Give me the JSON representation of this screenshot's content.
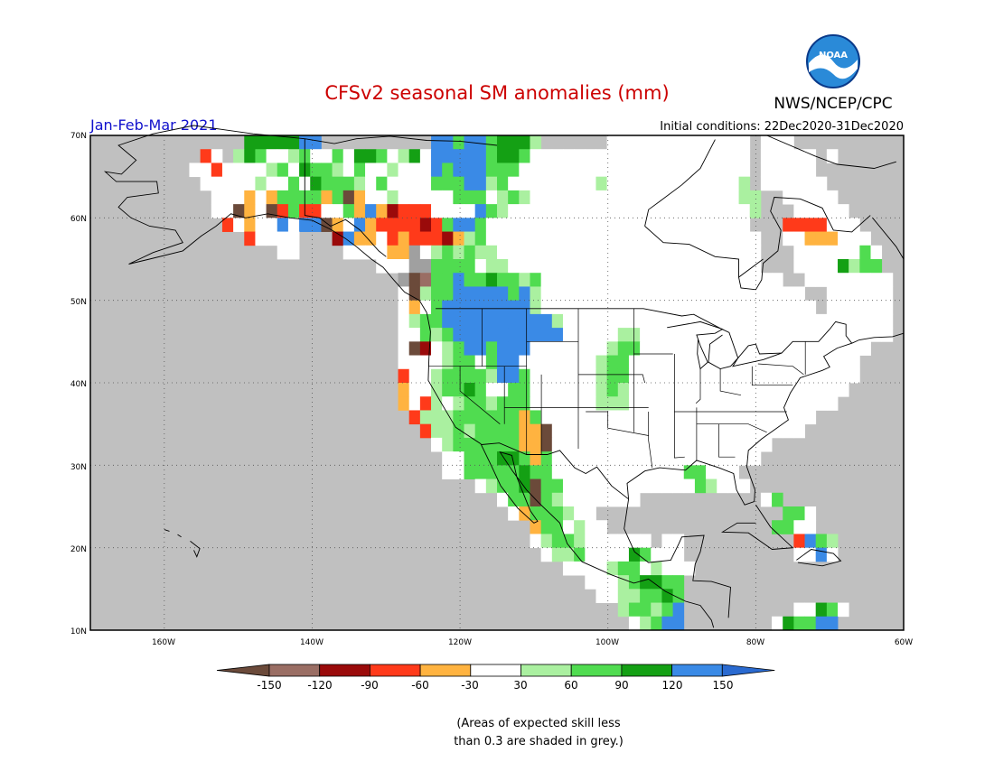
{
  "title": "CFSv2 seasonal SM anomalies (mm)",
  "period": "Jan-Feb-Mar 2021",
  "initial_conditions": "Initial conditions: 22Dec2020-31Dec2020",
  "agency": "NWS/NCEP/CPC",
  "logo_text": "NOAA",
  "colors": {
    "title": "#cc0000",
    "period": "#1010cc",
    "background_land_no_skill": "#c0c0c0",
    "ocean": "#c0c0c0"
  },
  "lat_labels": [
    "70N",
    "60N",
    "50N",
    "40N",
    "30N",
    "20N",
    "10N"
  ],
  "lon_labels": [
    "160W",
    "140W",
    "120W",
    "100W",
    "80W",
    "60W"
  ],
  "colorbar": {
    "labels": [
      "-150",
      "-120",
      "-90",
      "-60",
      "-30",
      "30",
      "60",
      "90",
      "120",
      "150"
    ],
    "colors": [
      "#6b4a3a",
      "#9a6e64",
      "#9a0a0a",
      "#ff3a1a",
      "#ffb340",
      "#ffffff",
      "#aaf0a0",
      "#50dc50",
      "#14a014",
      "#3a8ae6",
      "#2a6ad0"
    ]
  },
  "note": [
    "(Areas of expected skill less",
    "than 0.3 are shaded in grey.)"
  ],
  "map_data": {
    "palette": {
      "W": "#ffffff",
      "L": "#aaf0a0",
      "G": "#50dc50",
      "D": "#14a014",
      "B": "#3a8ae6",
      "O": "#ffb340",
      "R": "#ff3a1a",
      "M": "#9a0a0a",
      "N": "#6b4a3a",
      "P": "#9a6e64",
      "Y": "#a0a0a0"
    },
    "grid_rows": [
      "..............DDDDDBB..........BBGBBGDDDL......WWWWWWWWWWWWW.WWW..........",
      "..........RW.LDGWWLGWWGWDDGWLDWBBBBBGDDGWWWWWWWWWWWWWWWWWWWW.WWWWW.W......",
      ".........WWRWWWWLGWDGGLWGWWLWWWBGBBBGGGWWWWWWWWWWWWWWWWWWWWW.WWWWW........",
      "..........WWWWWLWWGWDGGGLWGWWWWGGGBBLGWWWWWWWWLWWWWWWWWWWWWL.WWWWWW.......",
      "...........WWWOWOGGGGOGNOWWLWWWWWGGGWLGLWWWWWWWWWWWWWWWWWWWLL..WWWWW......",
      "...........WWNOWNRGRRWWGOBOMRRRWWWWBGLWWWWWWWWWWWWWWWWWWWWWWL...WWWWW.....",
      "............RWOWWBWBBNOWBORRRRMRGBBGWWWWWWWWWWWWWWWWWWWWWWWW...RRRRWWW....",
      "..............RWWWW...MBOOWRORRRMOLGWWWWWWWWWWWWWWWWWWWWWWWWW..WWOOOWWW...",
      ".................WW....WWWWOOYWLGLGLLWWWWWWWWWWWWWWWWWWWWWWWW...WWWWWWGW..",
      "..........................WWWYYGGGGWLLWWWWWWWWWWWWWWWWWWWWWWW...WWWWDLGG..",
      "............................YNPGGBGGDGGLGWWWWWWWWWWWWWWWWWWWWWW..WWWWWWWW.",
      "............................WNLGGBBBBBGBLWWWWWWWWWWWWWWWWWWWWWWWW..WWWWWW.",
      "............................WOWGBBBBBBBBLWWWWWWWWWWWWWWWWWWWWWWWWW.WWWWWW.",
      "............................WLGGBBBBBBBBBBLWWWWWWWWWWWWWWWWWWWWWWWWWWWWWW.",
      "............................WWGLGBBBBBBBBBBWWWWWLLWWWWWWWWWWWWWWWWWWWWWWW.",
      "............................WNMWLGBBGBBBWWWWWWWLGGWWWWWWWWWWWWWWWWWWWWW...",
      "............................WWWWLGGWGBBWWWWWWWLGGWWWWWWWWWWWWWWWWWWWWW....",
      "............................RWWLGGGGLBBGWWWWWWLGGWWWWWWWWWWWWWWWWWWWWW....",
      "............................OWWLGGDGWWGGWWWWWWLGLWWWWWWWWWWWWWWWWWWWW.....",
      "............................OWRLWLGGLGGGWWWWWWLLLWWWWWWWWWWWWWWWWWWW......",
      ".............................RLLLGGGGGGOGWWWWWWWWWWWWWWWWWWWWWWWWW.......",
      "..............................RLLGLGGGGOONWWWWWWWWWWWWWWWWWWWWWWW........",
      "...............................WLGGGGGGOONWWWWWWWWWWWWWWWWWWWW...........",
      "................................WWGGGDDGOGWWWWWWWWWWWWWWWWWWW............",
      "................................WWGGGGGDGGWWWWWWWWWWWWGGWWW...............",
      "...................................WLGGDNGGWWWWWWWWWWWWGLWWW..............",
      ".....................................WGGNGLWWWWWWW...........WG...........",
      "......................................WOGGGLWW.................GGW........",
      "........................................OGGWLWW...............GGWW.......",
      "........................................WLGGLWWWWWW.WW..........RBGL......",
      ".........................................WLLGWWWWDGWWW..........WWBW......",
      "...........................................WWWWLGGWLWWW...................",
      ".............................................WWWLGDDGG...................",
      "..............................................WWLLGGDG...................",
      "................................................LGGLGB..........WWDGW.....",
      ".................................................WLGBB........WDGGBB....."
    ]
  }
}
